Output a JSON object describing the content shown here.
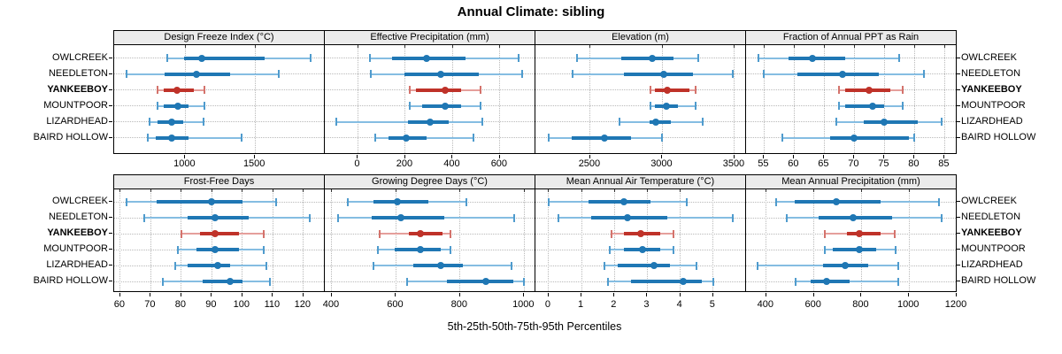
{
  "title": "Annual Climate: sibling",
  "caption": "5th-25th-50th-75th-95th Percentiles",
  "percentile_labels": [
    "5th",
    "25th",
    "50th",
    "75th",
    "95th"
  ],
  "sites": [
    "OWLCREEK",
    "NEEDLETON",
    "YANKEEBOY",
    "MOUNTPOOR",
    "LIZARDHEAD",
    "BAIRD HOLLOW"
  ],
  "highlight_site": "YANKEEBOY",
  "colors": {
    "normal": "#1f77b4",
    "normal_light": "#85bde2",
    "normal_cap": "#4f9bcd",
    "highlight": "#bf3229",
    "highlight_light": "#e59f9b",
    "highlight_cap": "#d4736c",
    "header_bg": "#ebebeb",
    "grid": "#b9b9b9",
    "border": "#000000"
  },
  "chart_data": [
    {
      "type": "dotplot-percentiles",
      "title": "Design Freeze Index (°C)",
      "xlim": [
        490,
        2000
      ],
      "ticks": [
        1000,
        1500
      ],
      "series": [
        {
          "name": "OWLCREEK",
          "values": [
            870,
            990,
            1120,
            1570,
            1900
          ]
        },
        {
          "name": "NEEDLETON",
          "values": [
            580,
            850,
            1080,
            1320,
            1670
          ]
        },
        {
          "name": "YANKEEBOY",
          "values": [
            800,
            845,
            940,
            1060,
            1140
          ]
        },
        {
          "name": "MOUNTPOOR",
          "values": [
            800,
            845,
            945,
            1020,
            1140
          ]
        },
        {
          "name": "LIZARDHEAD",
          "values": [
            745,
            800,
            900,
            985,
            1130
          ]
        },
        {
          "name": "BAIRD HOLLOW",
          "values": [
            730,
            790,
            900,
            1020,
            1405
          ]
        }
      ]
    },
    {
      "type": "dotplot-percentiles",
      "title": "Effective Precipitation (mm)",
      "xlim": [
        -140,
        750
      ],
      "ticks": [
        0,
        200,
        400,
        600
      ],
      "series": [
        {
          "name": "OWLCREEK",
          "values": [
            50,
            145,
            290,
            455,
            680
          ]
        },
        {
          "name": "NEEDLETON",
          "values": [
            55,
            195,
            350,
            510,
            695
          ]
        },
        {
          "name": "YANKEEBOY",
          "values": [
            220,
            245,
            370,
            435,
            520
          ]
        },
        {
          "name": "MOUNTPOOR",
          "values": [
            220,
            270,
            370,
            435,
            520
          ]
        },
        {
          "name": "LIZARDHEAD",
          "values": [
            -90,
            210,
            305,
            385,
            525
          ]
        },
        {
          "name": "BAIRD HOLLOW",
          "values": [
            75,
            130,
            205,
            290,
            490
          ]
        }
      ]
    },
    {
      "type": "dotplot-percentiles",
      "title": "Elevation (m)",
      "xlim": [
        2120,
        3580
      ],
      "ticks": [
        2500,
        3000,
        3500
      ],
      "series": [
        {
          "name": "OWLCREEK",
          "values": [
            2410,
            2715,
            2930,
            3080,
            3250
          ]
        },
        {
          "name": "NEEDLETON",
          "values": [
            2380,
            2735,
            3010,
            3215,
            3485
          ]
        },
        {
          "name": "YANKEEBOY",
          "values": [
            2920,
            2950,
            3035,
            3185,
            3230
          ]
        },
        {
          "name": "MOUNTPOOR",
          "values": [
            2915,
            2950,
            3030,
            3105,
            3230
          ]
        },
        {
          "name": "LIZARDHEAD",
          "values": [
            2705,
            2910,
            2955,
            3060,
            3280
          ]
        },
        {
          "name": "BAIRD HOLLOW",
          "values": [
            2210,
            2370,
            2600,
            2785,
            2995
          ]
        }
      ]
    },
    {
      "type": "dotplot-percentiles",
      "title": "Fraction of Annual PPT as Rain",
      "xlim": [
        52,
        87
      ],
      "ticks": [
        55,
        60,
        65,
        70,
        75,
        80,
        85
      ],
      "series": [
        {
          "name": "OWLCREEK",
          "values": [
            54,
            59,
            63,
            68.5,
            77.5
          ]
        },
        {
          "name": "NEEDLETON",
          "values": [
            55,
            60.5,
            68,
            74,
            81.5
          ]
        },
        {
          "name": "YANKEEBOY",
          "values": [
            67.5,
            68.5,
            72.5,
            76,
            78
          ]
        },
        {
          "name": "MOUNTPOOR",
          "values": [
            67.5,
            68.5,
            73,
            75,
            78
          ]
        },
        {
          "name": "LIZARDHEAD",
          "values": [
            67,
            71.5,
            75,
            80.5,
            84.5
          ]
        },
        {
          "name": "BAIRD HOLLOW",
          "values": [
            58,
            66,
            70,
            79,
            80
          ]
        }
      ]
    },
    {
      "type": "dotplot-percentiles",
      "title": "Frost-Free Days",
      "xlim": [
        58,
        127
      ],
      "ticks": [
        60,
        70,
        80,
        90,
        100,
        110,
        120
      ],
      "series": [
        {
          "name": "OWLCREEK",
          "values": [
            62,
            72,
            90,
            100,
            111
          ]
        },
        {
          "name": "NEEDLETON",
          "values": [
            68,
            82,
            91,
            102,
            122
          ]
        },
        {
          "name": "YANKEEBOY",
          "values": [
            80,
            86,
            91,
            99,
            107
          ]
        },
        {
          "name": "MOUNTPOOR",
          "values": [
            79,
            85,
            91,
            99,
            107
          ]
        },
        {
          "name": "LIZARDHEAD",
          "values": [
            78,
            82,
            92,
            96,
            108
          ]
        },
        {
          "name": "BAIRD HOLLOW",
          "values": [
            74,
            87,
            96,
            100,
            109
          ]
        }
      ]
    },
    {
      "type": "dotplot-percentiles",
      "title": "Growing Degree Days (°C)",
      "xlim": [
        378,
        1035
      ],
      "ticks": [
        400,
        600,
        800,
        1000
      ],
      "series": [
        {
          "name": "OWLCREEK",
          "values": [
            450,
            530,
            605,
            700,
            820
          ]
        },
        {
          "name": "NEEDLETON",
          "values": [
            420,
            525,
            615,
            750,
            970
          ]
        },
        {
          "name": "YANKEEBOY",
          "values": [
            550,
            640,
            675,
            745,
            770
          ]
        },
        {
          "name": "MOUNTPOOR",
          "values": [
            545,
            595,
            675,
            740,
            770
          ]
        },
        {
          "name": "LIZARDHEAD",
          "values": [
            530,
            655,
            740,
            810,
            960
          ]
        },
        {
          "name": "BAIRD HOLLOW",
          "values": [
            635,
            760,
            880,
            965,
            1000
          ]
        }
      ]
    },
    {
      "type": "dotplot-percentiles",
      "title": "Mean Annual Air Temperature (°C)",
      "xlim": [
        -0.4,
        6
      ],
      "ticks": [
        0,
        1,
        2,
        3,
        4,
        5
      ],
      "series": [
        {
          "name": "OWLCREEK",
          "values": [
            0,
            1.2,
            2.3,
            3.1,
            4.2
          ]
        },
        {
          "name": "NEEDLETON",
          "values": [
            0.3,
            1.3,
            2.4,
            3.6,
            5.6
          ]
        },
        {
          "name": "YANKEEBOY",
          "values": [
            1.9,
            2.3,
            2.8,
            3.4,
            3.8
          ]
        },
        {
          "name": "MOUNTPOOR",
          "values": [
            1.85,
            2.3,
            2.85,
            3.4,
            3.8
          ]
        },
        {
          "name": "LIZARDHEAD",
          "values": [
            1.7,
            2.1,
            3.2,
            3.7,
            4.5
          ]
        },
        {
          "name": "BAIRD HOLLOW",
          "values": [
            1.8,
            2.5,
            4.1,
            4.65,
            5
          ]
        }
      ]
    },
    {
      "type": "dotplot-percentiles",
      "title": "Mean Annual Precipitation (mm)",
      "xlim": [
        315,
        1200
      ],
      "ticks": [
        400,
        600,
        800,
        1000,
        1200
      ],
      "series": [
        {
          "name": "OWLCREEK",
          "values": [
            440,
            520,
            695,
            880,
            1125
          ]
        },
        {
          "name": "NEEDLETON",
          "values": [
            485,
            620,
            765,
            930,
            1135
          ]
        },
        {
          "name": "YANKEEBOY",
          "values": [
            645,
            740,
            790,
            880,
            940
          ]
        },
        {
          "name": "MOUNTPOOR",
          "values": [
            645,
            680,
            790,
            860,
            945
          ]
        },
        {
          "name": "LIZARDHEAD",
          "values": [
            365,
            640,
            730,
            830,
            955
          ]
        },
        {
          "name": "BAIRD HOLLOW",
          "values": [
            525,
            585,
            655,
            750,
            955
          ]
        }
      ]
    }
  ]
}
